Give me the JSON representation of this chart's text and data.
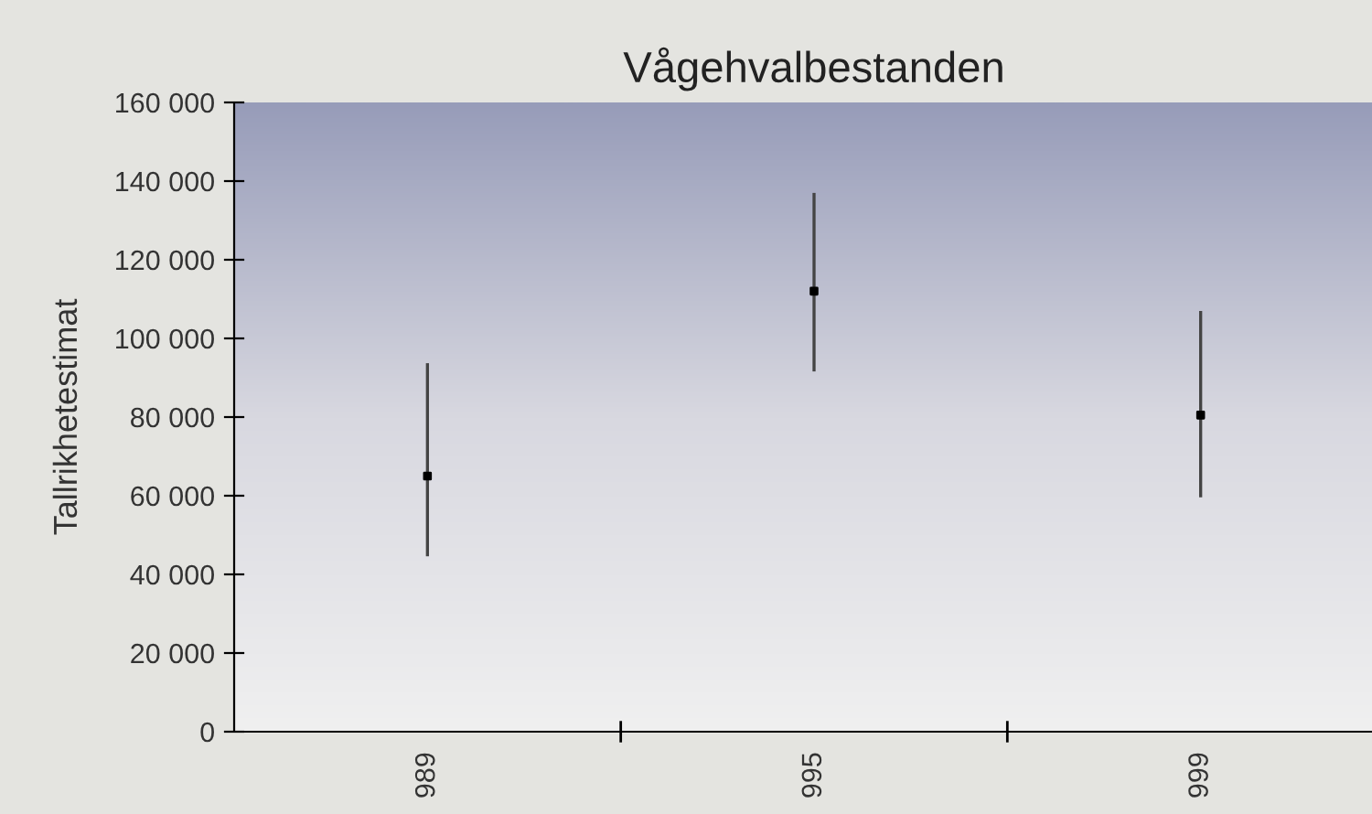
{
  "chart_data": {
    "type": "scatter",
    "title": "Vågehvalbestanden",
    "ylabel": "Tallrikhetestimat",
    "categories": [
      "989",
      "995",
      "999"
    ],
    "values": [
      65000,
      112000,
      80500
    ],
    "errors": [
      [
        44600,
        93700
      ],
      [
        91600,
        137000
      ],
      [
        59600,
        107000
      ]
    ],
    "color": "#000000",
    "marker": "square",
    "ylim": [
      0,
      160000
    ],
    "yticks": [
      {
        "value": 0,
        "label": "0"
      },
      {
        "value": 20000,
        "label": "20 000"
      },
      {
        "value": 40000,
        "label": "40 000"
      },
      {
        "value": 60000,
        "label": "60 000"
      },
      {
        "value": 80000,
        "label": "80 000"
      },
      {
        "value": 100000,
        "label": "100 000"
      },
      {
        "value": 120000,
        "label": "120 000"
      },
      {
        "value": 140000,
        "label": "140 000"
      },
      {
        "value": 160000,
        "label": "160 000"
      }
    ],
    "grid": false,
    "legend": false
  }
}
